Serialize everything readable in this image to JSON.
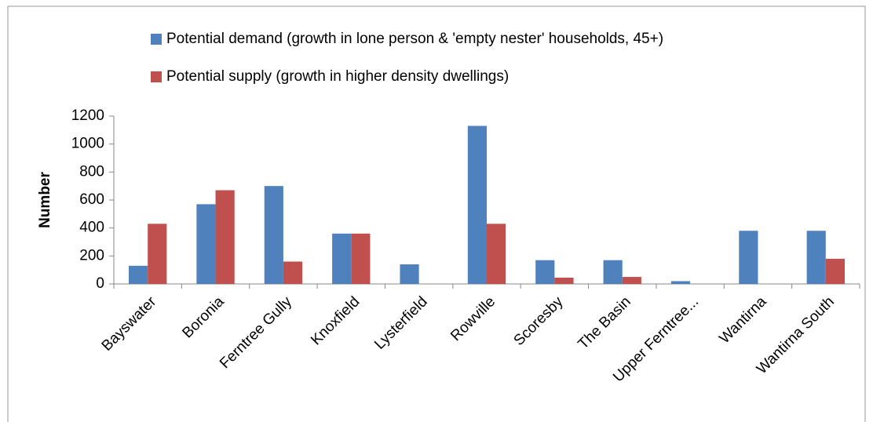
{
  "chart_data": {
    "type": "bar",
    "y_label": "Number",
    "categories": [
      "Bayswater",
      "Boronia",
      "Ferntree Gully",
      "Knoxfield",
      "Lysterfield",
      "Rowville",
      "Scoresby",
      "The Basin",
      "Upper Ferntree...",
      "Wantirna",
      "Wantirna South"
    ],
    "series": [
      {
        "name": "Potential demand (growth in lone person & 'empty nester' households, 45+)",
        "color": "#4f81bd",
        "values": [
          130,
          570,
          700,
          360,
          140,
          1130,
          170,
          170,
          20,
          380,
          380
        ]
      },
      {
        "name": "Potential supply (growth in higher density dwellings)",
        "color": "#c0504d",
        "values": [
          430,
          670,
          160,
          360,
          0,
          430,
          45,
          50,
          0,
          0,
          180
        ]
      }
    ],
    "ylim": [
      0,
      1200
    ],
    "yticks": [
      0,
      200,
      400,
      600,
      800,
      1000,
      1200
    ],
    "grid": false
  }
}
